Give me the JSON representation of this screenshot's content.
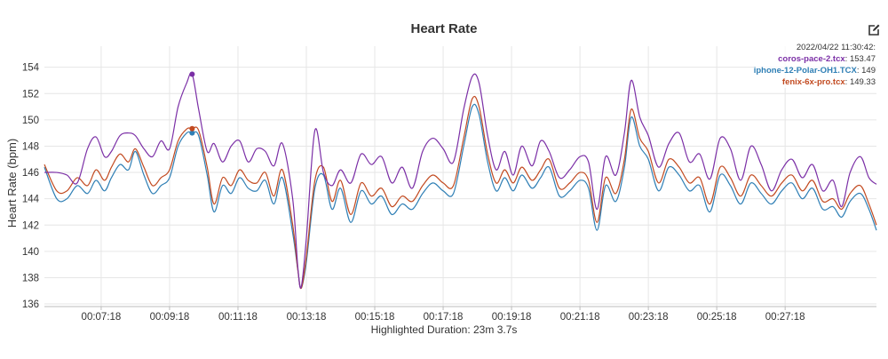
{
  "chart_data": {
    "type": "line",
    "title": "Heart Rate",
    "ylabel": "Heart Rate (bpm)",
    "xlabel": "Highlighted Duration: 23m 3.7s",
    "ylim": [
      135.8,
      155.6
    ],
    "xlim": [
      5.64,
      29.97
    ],
    "grid": true,
    "yticks": [
      136,
      138,
      140,
      142,
      144,
      146,
      148,
      150,
      152,
      154
    ],
    "xticks": [
      {
        "value": 7.3,
        "label": "00:07:18"
      },
      {
        "value": 9.3,
        "label": "00:09:18"
      },
      {
        "value": 11.3,
        "label": "00:11:18"
      },
      {
        "value": 13.3,
        "label": "00:13:18"
      },
      {
        "value": 15.3,
        "label": "00:15:18"
      },
      {
        "value": 17.3,
        "label": "00:17:18"
      },
      {
        "value": 19.3,
        "label": "00:19:18"
      },
      {
        "value": 21.3,
        "label": "00:21:18"
      },
      {
        "value": 23.3,
        "label": "00:23:18"
      },
      {
        "value": 25.3,
        "label": "00:25:18"
      },
      {
        "value": 27.3,
        "label": "00:27:18"
      }
    ],
    "highlight_x": 9.96,
    "tooltip": {
      "timestamp": "2022/04/22 11:30:42:",
      "entries": [
        {
          "name": "coros-pace-2.tcx",
          "value": "153.47"
        },
        {
          "name": "iphone-12-Polar-OH1.TCX",
          "value": "149"
        },
        {
          "name": "fenix-6x-pro.tcx",
          "value": "149.33"
        }
      ]
    },
    "series": [
      {
        "name": "coros-pace-2.tcx",
        "color": "#7b2fa6",
        "x": [
          5.64,
          6.0,
          6.3,
          6.6,
          6.9,
          7.15,
          7.4,
          7.6,
          7.85,
          8.1,
          8.3,
          8.55,
          8.8,
          9.05,
          9.3,
          9.55,
          9.8,
          9.96,
          10.15,
          10.4,
          10.6,
          10.85,
          11.1,
          11.35,
          11.6,
          11.85,
          12.1,
          12.35,
          12.6,
          12.9,
          13.05,
          13.15,
          13.3,
          13.55,
          13.8,
          14.05,
          14.3,
          14.6,
          14.9,
          15.2,
          15.5,
          15.8,
          16.1,
          16.4,
          16.7,
          17.0,
          17.3,
          17.6,
          17.9,
          18.15,
          18.35,
          18.6,
          18.85,
          19.1,
          19.35,
          19.6,
          19.9,
          20.15,
          20.4,
          20.7,
          21.0,
          21.3,
          21.55,
          21.8,
          22.05,
          22.35,
          22.6,
          22.8,
          23.05,
          23.3,
          23.6,
          23.9,
          24.2,
          24.5,
          24.8,
          25.1,
          25.4,
          25.7,
          26.0,
          26.3,
          26.6,
          26.9,
          27.2,
          27.5,
          27.8,
          28.1,
          28.4,
          28.7,
          28.95,
          29.2,
          29.5,
          29.75,
          29.97
        ],
        "values": [
          146.0,
          146.0,
          145.8,
          145.2,
          147.8,
          148.7,
          147.2,
          147.6,
          148.8,
          149.0,
          148.8,
          147.8,
          147.2,
          148.4,
          147.8,
          151.0,
          152.8,
          153.47,
          150.8,
          147.6,
          148.2,
          146.8,
          148.0,
          148.4,
          146.8,
          147.8,
          147.6,
          146.5,
          148.2,
          144.0,
          138.8,
          137.3,
          141.0,
          149.2,
          146.0,
          145.0,
          146.2,
          145.2,
          147.4,
          146.6,
          147.2,
          145.2,
          146.4,
          144.8,
          147.6,
          148.6,
          147.8,
          146.8,
          150.8,
          153.3,
          152.8,
          148.8,
          146.2,
          147.6,
          145.8,
          148.0,
          146.5,
          148.4,
          147.6,
          145.6,
          146.2,
          147.2,
          146.8,
          143.2,
          147.2,
          145.8,
          149.0,
          153.0,
          150.2,
          148.8,
          146.4,
          148.2,
          149.0,
          146.8,
          147.4,
          145.5,
          148.6,
          147.8,
          145.4,
          148.0,
          146.6,
          144.6,
          146.2,
          147.0,
          145.6,
          146.6,
          144.6,
          145.4,
          143.4,
          146.0,
          147.2,
          145.6,
          145.1
        ]
      },
      {
        "name": "iphone-12-Polar-OH1.TCX",
        "color": "#2f7fb5",
        "x": [
          5.64,
          6.0,
          6.3,
          6.6,
          6.9,
          7.15,
          7.4,
          7.6,
          7.85,
          8.1,
          8.3,
          8.55,
          8.8,
          9.05,
          9.3,
          9.55,
          9.8,
          9.96,
          10.15,
          10.4,
          10.6,
          10.85,
          11.1,
          11.35,
          11.6,
          11.85,
          12.1,
          12.35,
          12.6,
          12.9,
          13.05,
          13.15,
          13.3,
          13.55,
          13.8,
          14.05,
          14.3,
          14.6,
          14.9,
          15.2,
          15.5,
          15.8,
          16.1,
          16.4,
          16.7,
          17.0,
          17.3,
          17.6,
          17.9,
          18.15,
          18.35,
          18.6,
          18.85,
          19.1,
          19.35,
          19.6,
          19.9,
          20.15,
          20.4,
          20.7,
          21.0,
          21.3,
          21.55,
          21.8,
          22.05,
          22.35,
          22.6,
          22.8,
          23.05,
          23.3,
          23.6,
          23.9,
          24.2,
          24.5,
          24.8,
          25.1,
          25.4,
          25.7,
          26.0,
          26.3,
          26.6,
          26.9,
          27.2,
          27.5,
          27.8,
          28.1,
          28.4,
          28.7,
          28.95,
          29.2,
          29.5,
          29.75,
          29.97
        ],
        "values": [
          146.4,
          144.0,
          144.0,
          145.0,
          144.4,
          145.4,
          144.6,
          145.6,
          146.6,
          146.2,
          147.6,
          145.8,
          144.4,
          145.0,
          145.6,
          148.0,
          149.0,
          149.0,
          148.8,
          145.8,
          143.0,
          145.0,
          144.4,
          145.6,
          144.8,
          144.6,
          145.4,
          143.6,
          145.6,
          141.4,
          138.6,
          137.2,
          139.2,
          144.8,
          145.8,
          143.2,
          144.8,
          142.2,
          144.6,
          143.6,
          144.2,
          142.8,
          143.6,
          143.2,
          144.4,
          145.2,
          144.6,
          144.4,
          148.0,
          151.0,
          150.4,
          146.8,
          144.6,
          145.6,
          144.6,
          145.8,
          144.8,
          145.6,
          146.4,
          144.2,
          144.6,
          145.4,
          144.8,
          141.6,
          145.0,
          143.8,
          146.4,
          150.2,
          148.0,
          147.0,
          144.6,
          146.4,
          145.8,
          144.6,
          145.0,
          143.0,
          145.8,
          145.0,
          143.6,
          145.2,
          144.4,
          143.6,
          144.6,
          145.2,
          144.0,
          144.8,
          143.2,
          143.4,
          142.6,
          143.8,
          144.4,
          143.2,
          141.6
        ]
      },
      {
        "name": "fenix-6x-pro.tcx",
        "color": "#c24a20",
        "x": [
          5.64,
          6.0,
          6.3,
          6.6,
          6.9,
          7.15,
          7.4,
          7.6,
          7.85,
          8.1,
          8.3,
          8.55,
          8.8,
          9.05,
          9.3,
          9.55,
          9.8,
          9.96,
          10.15,
          10.4,
          10.6,
          10.85,
          11.1,
          11.35,
          11.6,
          11.85,
          12.1,
          12.35,
          12.6,
          12.9,
          13.05,
          13.15,
          13.3,
          13.55,
          13.8,
          14.05,
          14.3,
          14.6,
          14.9,
          15.2,
          15.5,
          15.8,
          16.1,
          16.4,
          16.7,
          17.0,
          17.3,
          17.6,
          17.9,
          18.15,
          18.35,
          18.6,
          18.85,
          19.1,
          19.35,
          19.6,
          19.9,
          20.15,
          20.4,
          20.7,
          21.0,
          21.3,
          21.55,
          21.8,
          22.05,
          22.35,
          22.6,
          22.8,
          23.05,
          23.3,
          23.6,
          23.9,
          24.2,
          24.5,
          24.8,
          25.1,
          25.4,
          25.7,
          26.0,
          26.3,
          26.6,
          26.9,
          27.2,
          27.5,
          27.8,
          28.1,
          28.4,
          28.7,
          28.95,
          29.2,
          29.5,
          29.75,
          29.97
        ],
        "values": [
          146.6,
          144.6,
          144.6,
          145.6,
          145.0,
          146.2,
          145.4,
          146.4,
          147.4,
          146.8,
          147.8,
          146.4,
          145.0,
          145.6,
          146.2,
          148.4,
          149.3,
          149.33,
          149.2,
          146.4,
          143.6,
          145.6,
          145.0,
          146.2,
          145.4,
          145.2,
          146.0,
          144.2,
          146.2,
          142.0,
          138.6,
          137.2,
          139.6,
          145.4,
          146.4,
          143.8,
          145.4,
          142.8,
          145.2,
          144.2,
          144.8,
          143.4,
          144.2,
          143.8,
          145.0,
          145.8,
          145.2,
          145.0,
          148.6,
          151.6,
          151.0,
          147.4,
          145.2,
          146.2,
          145.2,
          146.4,
          145.4,
          146.2,
          147.0,
          144.8,
          145.2,
          146.0,
          145.4,
          142.2,
          145.6,
          144.4,
          147.0,
          150.8,
          148.6,
          147.6,
          145.2,
          147.0,
          146.4,
          145.2,
          145.6,
          143.6,
          146.4,
          145.6,
          144.2,
          145.8,
          145.0,
          144.2,
          145.2,
          145.8,
          144.6,
          145.4,
          143.8,
          144.0,
          143.2,
          144.4,
          145.0,
          143.6,
          142.0
        ]
      }
    ]
  },
  "footer": {
    "text": "Highlighted Duration: 23m 3.7s"
  },
  "icons": {
    "edit": "edit-icon"
  }
}
